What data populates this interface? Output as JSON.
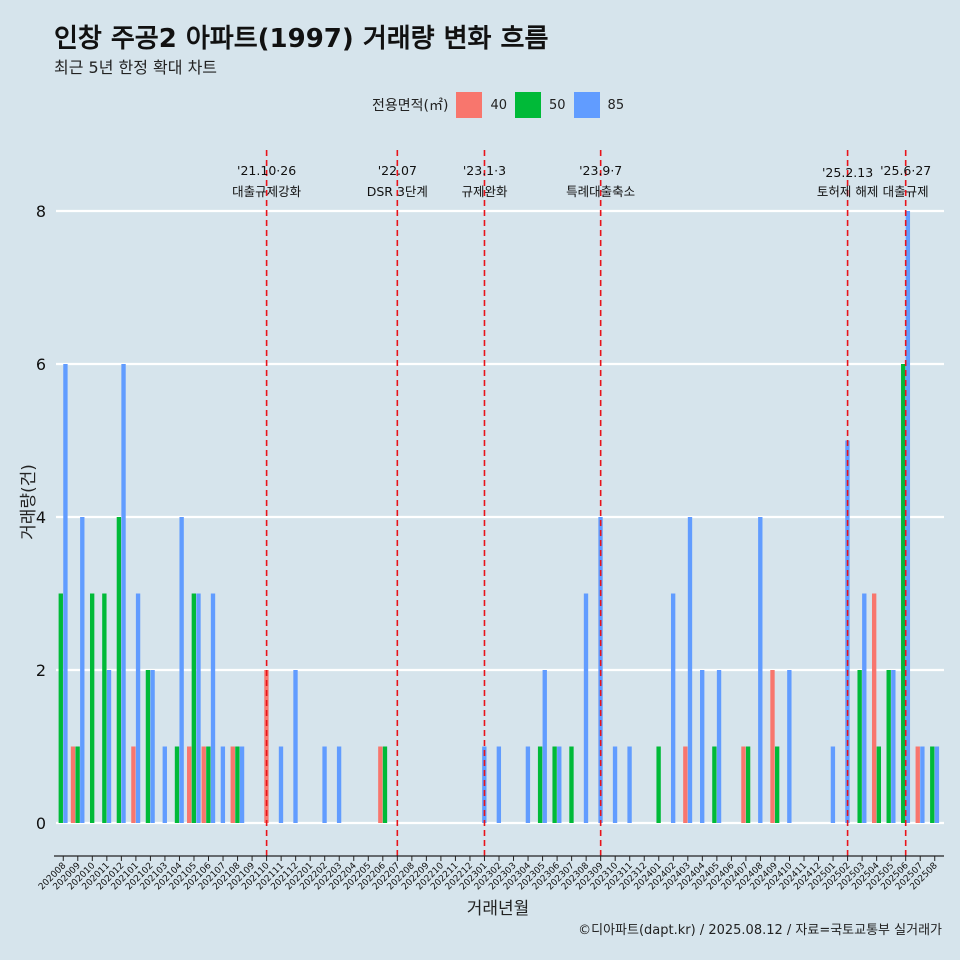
{
  "title": "인창 주공2 아파트(1997) 거래량 변화 흐름",
  "subtitle": "최근 5년 한정 확대 차트",
  "caption": "©디아파트(dapt.kr) / 2025.08.12 / 자료=국토교통부 실거래가",
  "legend": {
    "title": "전용면적(㎡)",
    "items": [
      {
        "label": "40",
        "color": "#f8766d"
      },
      {
        "label": "50",
        "color": "#00ba38"
      },
      {
        "label": "85",
        "color": "#619cff"
      }
    ]
  },
  "chart_data": {
    "type": "bar",
    "xlabel": "거래년월",
    "ylabel": "거래량(건)",
    "ylim": [
      0,
      8
    ],
    "yticks": [
      0,
      2,
      4,
      6,
      8
    ],
    "grid": true,
    "categories": [
      "202008",
      "202009",
      "202010",
      "202011",
      "202012",
      "202101",
      "202102",
      "202103",
      "202104",
      "202105",
      "202106",
      "202107",
      "202108",
      "202109",
      "202110",
      "202111",
      "202112",
      "202201",
      "202202",
      "202203",
      "202204",
      "202205",
      "202206",
      "202207",
      "202208",
      "202209",
      "202210",
      "202211",
      "202212",
      "202301",
      "202302",
      "202303",
      "202304",
      "202305",
      "202306",
      "202307",
      "202308",
      "202309",
      "202310",
      "202311",
      "202312",
      "202401",
      "202402",
      "202403",
      "202404",
      "202405",
      "202406",
      "202407",
      "202408",
      "202409",
      "202410",
      "202411",
      "202412",
      "202501",
      "202502",
      "202503",
      "202504",
      "202505",
      "202506",
      "202507",
      "202508"
    ],
    "series": [
      {
        "name": "40",
        "color": "#f8766d",
        "values": [
          0,
          1,
          0,
          0,
          0,
          1,
          0,
          0,
          0,
          1,
          1,
          0,
          1,
          0,
          2,
          0,
          0,
          0,
          0,
          0,
          0,
          0,
          1,
          0,
          0,
          0,
          0,
          0,
          0,
          0,
          0,
          0,
          0,
          0,
          0,
          0,
          0,
          0,
          0,
          0,
          0,
          0,
          0,
          1,
          0,
          0,
          0,
          1,
          0,
          2,
          0,
          0,
          0,
          0,
          0,
          0,
          3,
          0,
          0,
          1,
          0
        ]
      },
      {
        "name": "50",
        "color": "#00ba38",
        "values": [
          3,
          1,
          3,
          3,
          4,
          0,
          2,
          0,
          1,
          3,
          1,
          0,
          1,
          0,
          0,
          0,
          0,
          0,
          0,
          0,
          0,
          0,
          1,
          0,
          0,
          0,
          0,
          0,
          0,
          0,
          0,
          0,
          0,
          1,
          1,
          1,
          0,
          0,
          0,
          0,
          0,
          1,
          0,
          0,
          0,
          1,
          0,
          1,
          0,
          1,
          0,
          0,
          0,
          0,
          0,
          2,
          1,
          2,
          6,
          0,
          1
        ]
      },
      {
        "name": "85",
        "color": "#619cff",
        "values": [
          6,
          4,
          0,
          2,
          6,
          3,
          2,
          1,
          4,
          3,
          3,
          1,
          1,
          0,
          0,
          1,
          2,
          0,
          1,
          1,
          0,
          0,
          0,
          0,
          0,
          0,
          0,
          0,
          0,
          1,
          1,
          0,
          1,
          2,
          1,
          0,
          3,
          4,
          1,
          1,
          0,
          0,
          3,
          4,
          2,
          2,
          0,
          0,
          4,
          0,
          2,
          0,
          0,
          1,
          5,
          3,
          0,
          2,
          8,
          1,
          1
        ]
      }
    ],
    "events": [
      {
        "date": "'21.10·26",
        "label": "대출규제강화",
        "at": "202110"
      },
      {
        "date": "'22.07",
        "label": "DSR 3단계",
        "at": "202207"
      },
      {
        "date": "'23.1·3",
        "label": "규제완화",
        "at": "202301"
      },
      {
        "date": "'23.9·7",
        "label": "특례대출축소",
        "at": "202309"
      },
      {
        "date": "'25.2.13",
        "label": "토허제 해제",
        "at": "202502"
      },
      {
        "date": "'25.6·27",
        "label": "대출규제",
        "at": "202506"
      }
    ]
  }
}
